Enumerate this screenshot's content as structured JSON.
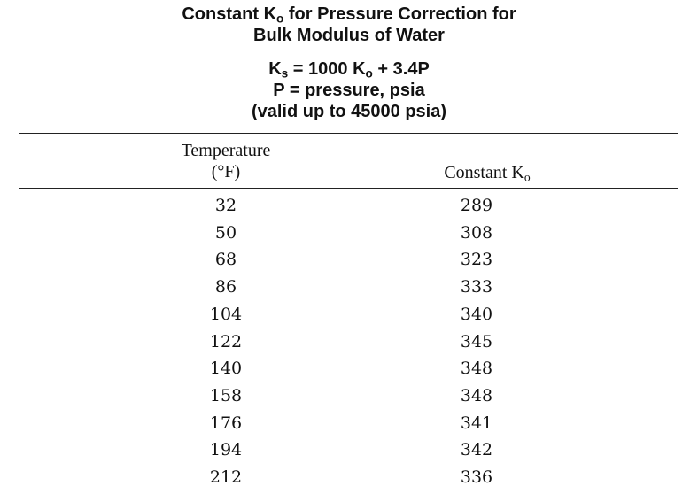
{
  "title": {
    "line1_a": "Constant K",
    "line1_sub": "o",
    "line1_b": " for Pressure Correction for",
    "line2": "Bulk Modulus of Water"
  },
  "formula": {
    "lhs": "K",
    "lhs_sub": "s",
    "mid": " = 1000 K",
    "mid_sub": "o",
    "rhs": " + 3.4P",
    "definition": "P = pressure, psia",
    "validity": "(valid up to 45000 psia)"
  },
  "table": {
    "headers": {
      "temperature_line1": "Temperature",
      "temperature_line2": "(°F)",
      "constant": "Constant K",
      "constant_sub": "o"
    },
    "rows": [
      {
        "temperature": "32",
        "constant": "289"
      },
      {
        "temperature": "50",
        "constant": "308"
      },
      {
        "temperature": "68",
        "constant": "323"
      },
      {
        "temperature": "86",
        "constant": "333"
      },
      {
        "temperature": "104",
        "constant": "340"
      },
      {
        "temperature": "122",
        "constant": "345"
      },
      {
        "temperature": "140",
        "constant": "348"
      },
      {
        "temperature": "158",
        "constant": "348"
      },
      {
        "temperature": "176",
        "constant": "341"
      },
      {
        "temperature": "194",
        "constant": "342"
      },
      {
        "temperature": "212",
        "constant": "336"
      }
    ]
  }
}
